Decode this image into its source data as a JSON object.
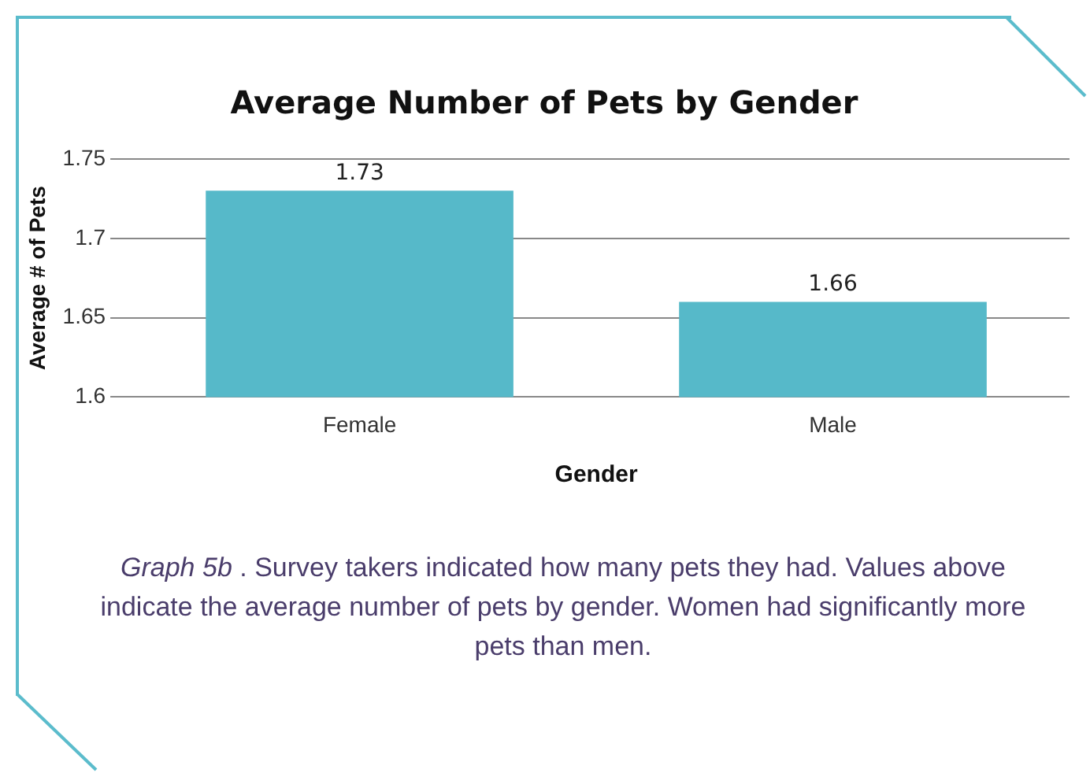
{
  "chart_data": {
    "type": "bar",
    "title": "Average Number of Pets by Gender",
    "xlabel": "Gender",
    "ylabel": "Average # of Pets",
    "categories": [
      "Female",
      "Male"
    ],
    "values": [
      1.73,
      1.66
    ],
    "color": "#56b9c9",
    "ylim": [
      1.6,
      1.75
    ],
    "yticks": [
      1.6,
      1.65,
      1.7,
      1.75
    ],
    "grid": "y",
    "data_labels": true,
    "legend": false,
    "annotations": [
      "Graph 5b . Survey takers indicated how many pets they had. Values above indicate the average number of pets by gender. Women had significantly more pets than men."
    ]
  }
}
